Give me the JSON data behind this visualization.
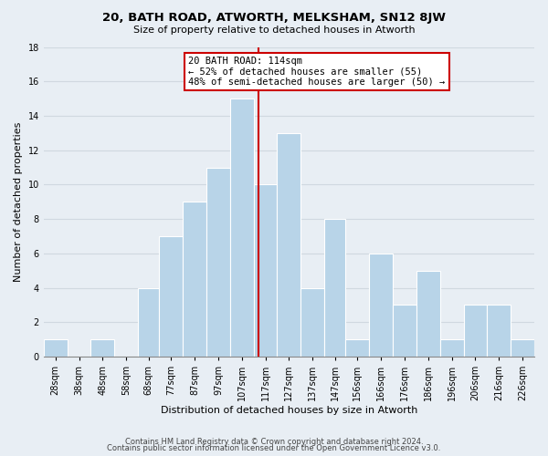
{
  "title": "20, BATH ROAD, ATWORTH, MELKSHAM, SN12 8JW",
  "subtitle": "Size of property relative to detached houses in Atworth",
  "xlabel": "Distribution of detached houses by size in Atworth",
  "ylabel": "Number of detached properties",
  "footer1": "Contains HM Land Registry data © Crown copyright and database right 2024.",
  "footer2": "Contains public sector information licensed under the Open Government Licence v3.0.",
  "bin_labels": [
    "28sqm",
    "38sqm",
    "48sqm",
    "58sqm",
    "68sqm",
    "77sqm",
    "87sqm",
    "97sqm",
    "107sqm",
    "117sqm",
    "127sqm",
    "137sqm",
    "147sqm",
    "156sqm",
    "166sqm",
    "176sqm",
    "186sqm",
    "196sqm",
    "206sqm",
    "216sqm",
    "226sqm"
  ],
  "bin_edges": [
    23,
    33,
    43,
    53,
    63,
    72,
    82,
    92,
    102,
    112,
    122,
    132,
    142,
    151,
    161,
    171,
    181,
    191,
    201,
    211,
    221,
    231
  ],
  "counts": [
    1,
    0,
    1,
    0,
    4,
    7,
    9,
    11,
    15,
    10,
    13,
    4,
    8,
    1,
    6,
    3,
    5,
    1,
    3,
    3,
    1
  ],
  "bar_color": "#b8d4e8",
  "bar_edge_color": "#ffffff",
  "reference_line_x": 114,
  "reference_line_color": "#cc0000",
  "annotation_text": "20 BATH ROAD: 114sqm\n← 52% of detached houses are smaller (55)\n48% of semi-detached houses are larger (50) →",
  "annotation_box_facecolor": "#ffffff",
  "annotation_box_edgecolor": "#cc0000",
  "ylim": [
    0,
    18
  ],
  "yticks": [
    0,
    2,
    4,
    6,
    8,
    10,
    12,
    14,
    16,
    18
  ],
  "grid_color": "#d0d8e0",
  "background_color": "#e8eef4",
  "plot_bg_color": "#e8eef4",
  "title_fontsize": 9.5,
  "subtitle_fontsize": 8,
  "axis_label_fontsize": 8,
  "tick_fontsize": 7,
  "footer_fontsize": 6,
  "annotation_fontsize": 7.5
}
